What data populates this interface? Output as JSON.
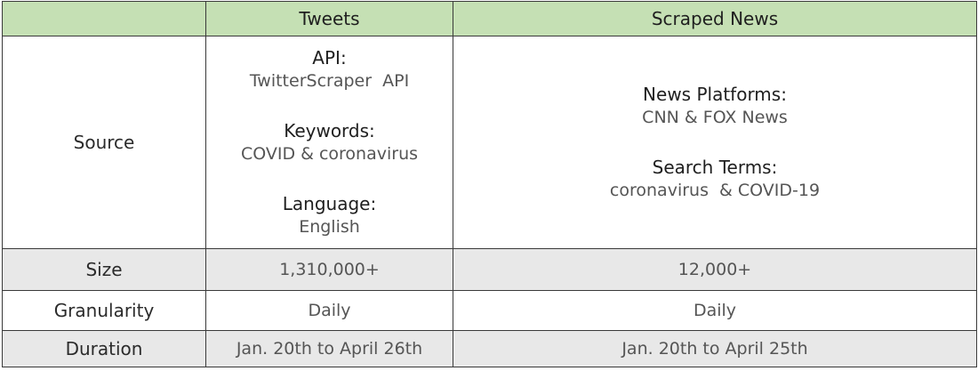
{
  "columns": {
    "tweets": "Tweets",
    "news": "Scraped News"
  },
  "rows": {
    "source": {
      "label": "Source",
      "tweets": {
        "api_label": "API:",
        "api_value": "TwitterScraper  API",
        "keywords_label": "Keywords:",
        "keywords_value": "COVID & coronavirus",
        "language_label": "Language:",
        "language_value": "English"
      },
      "news": {
        "platforms_label": "News Platforms:",
        "platforms_value": "CNN & FOX News",
        "terms_label": "Search Terms:",
        "terms_value": "coronavirus  & COVID-19"
      }
    },
    "size": {
      "label": "Size",
      "tweets": "1,310,000+",
      "news": "12,000+"
    },
    "granularity": {
      "label": "Granularity",
      "tweets": "Daily",
      "news": "Daily"
    },
    "duration": {
      "label": "Duration",
      "tweets": "Jan. 20th to April 26th",
      "news": "Jan. 20th to April 25th"
    }
  },
  "colors": {
    "header_bg": "#c5e0b4",
    "shaded_row_bg": "#e8e8e8",
    "border": "#3a3a3a"
  }
}
